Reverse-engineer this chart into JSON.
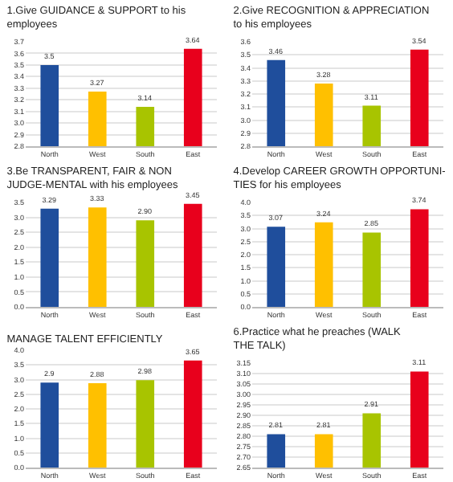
{
  "chart_data": [
    {
      "type": "bar",
      "title": "1.Give GUIDANCE & SUPPORT to his employees",
      "categories": [
        "North",
        "West",
        "South",
        "East"
      ],
      "values": [
        3.5,
        3.27,
        3.14,
        3.64
      ],
      "colors": [
        "#1f4e9c",
        "#ffc000",
        "#a8c400",
        "#e8001c"
      ],
      "ylim": [
        2.8,
        3.7
      ],
      "yticks": [
        {
          "value": 2.8,
          "label": "2.8"
        },
        2.9,
        {
          "value": 3.0,
          "label": "3.0"
        },
        3.1,
        3.2,
        3.3,
        3.4,
        3.5,
        3.6,
        3.7
      ],
      "grid": "y",
      "data_labels": true
    },
    {
      "type": "bar",
      "title": "2.Give RECOGNITION & APPRECIATION to his employees",
      "categories": [
        "North",
        "West",
        "South",
        "East"
      ],
      "values": [
        3.46,
        3.28,
        3.11,
        3.54
      ],
      "colors": [
        "#1f4e9c",
        "#ffc000",
        "#a8c400",
        "#e8001c"
      ],
      "ylim": [
        2.8,
        3.6
      ],
      "yticks": [
        {
          "value": 2.8,
          "label": "2.8"
        },
        2.9,
        {
          "value": 3.0,
          "label": "3.0"
        },
        3.1,
        3.2,
        3.3,
        3.4,
        3.5,
        3.6
      ],
      "grid": "y",
      "data_labels": true
    },
    {
      "type": "bar",
      "title": "3.Be TRANSPARENT, FAIR & NON JUDGE-MENTAL with his employees",
      "categories": [
        "North",
        "West",
        "South",
        "East"
      ],
      "values": [
        3.29,
        3.33,
        2.9,
        3.45
      ],
      "value_labels": [
        "3.29",
        "3.33",
        "2.90",
        "3.45"
      ],
      "colors": [
        "#1f4e9c",
        "#ffc000",
        "#a8c400",
        "#e8001c"
      ],
      "ylim": [
        0,
        3.5
      ],
      "yticks": [
        {
          "value": 0,
          "label": "0.0"
        },
        0.5,
        {
          "value": 1,
          "label": "1.0"
        },
        1.5,
        {
          "value": 2,
          "label": "2.0"
        },
        2.5,
        {
          "value": 3,
          "label": "3.0"
        },
        3.5
      ],
      "grid": "y"
    },
    {
      "type": "bar",
      "title": "4.Develop CAREER GROWTH OPPORTUNI-TIES for his employees",
      "categories": [
        "North",
        "West",
        "South",
        "East"
      ],
      "values": [
        3.07,
        3.24,
        2.85,
        3.74
      ],
      "colors": [
        "#1f4e9c",
        "#ffc000",
        "#a8c400",
        "#e8001c"
      ],
      "ylim": [
        0,
        4
      ],
      "yticks": [
        {
          "value": 0,
          "label": "0.0"
        },
        0.5,
        {
          "value": 1,
          "label": "1.0"
        },
        1.5,
        {
          "value": 2,
          "label": "2.0"
        },
        2.5,
        {
          "value": 3,
          "label": "3.0"
        },
        3.5,
        {
          "value": 4,
          "label": "4.0"
        }
      ],
      "grid": "y",
      "data_labels": true
    },
    {
      "type": "bar",
      "title": "MANAGE TALENT EFFICIENTLY",
      "categories": [
        "North",
        "West",
        "South",
        "East"
      ],
      "values": [
        2.9,
        2.88,
        2.98,
        3.65
      ],
      "colors": [
        "#1f4e9c",
        "#ffc000",
        "#a8c400",
        "#e8001c"
      ],
      "ylim": [
        0,
        4
      ],
      "yticks": [
        {
          "value": 0,
          "label": "0.0"
        },
        0.5,
        {
          "value": 1,
          "label": "1.0"
        },
        1.5,
        {
          "value": 2,
          "label": "2.0"
        },
        2.5,
        {
          "value": 3,
          "label": "3.0"
        },
        3.5,
        {
          "value": 4,
          "label": "4.0"
        }
      ],
      "grid": "y",
      "data_labels": true
    },
    {
      "type": "bar",
      "title": "6.Practice what he preaches (WALK THE TALK)",
      "categories": [
        "North",
        "West",
        "South",
        "East"
      ],
      "values": [
        2.81,
        2.81,
        2.91,
        3.11
      ],
      "colors": [
        "#1f4e9c",
        "#ffc000",
        "#a8c400",
        "#e8001c"
      ],
      "ylim": [
        2.65,
        3.15
      ],
      "yticks": [
        2.65,
        {
          "value": 2.7,
          "label": "2.70"
        },
        2.75,
        {
          "value": 2.8,
          "label": "2.80"
        },
        2.85,
        {
          "value": 2.9,
          "label": "2.90"
        },
        2.95,
        {
          "value": 3.0,
          "label": "3.00"
        },
        3.05,
        {
          "value": 3.1,
          "label": "3.10"
        },
        3.15
      ],
      "grid": "y",
      "data_labels": true
    }
  ]
}
